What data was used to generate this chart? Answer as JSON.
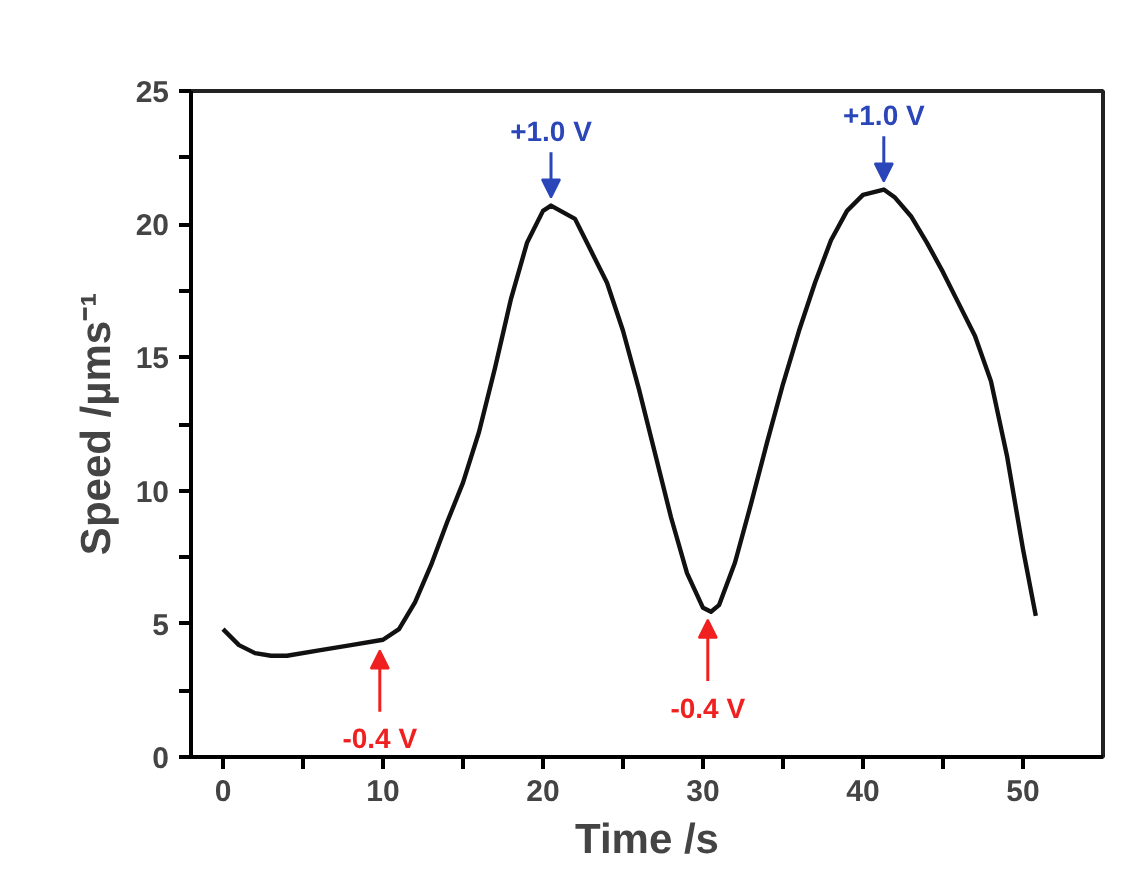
{
  "chart_data": {
    "type": "line",
    "xlabel": "Time /s",
    "ylabel": "Speed /µms⁻¹",
    "xlim": [
      -2,
      55
    ],
    "ylim": [
      0,
      25
    ],
    "xticks": [
      0,
      {
        "value": 5,
        "label": null
      },
      10,
      {
        "value": 15,
        "label": null
      },
      20,
      {
        "value": 25,
        "label": null
      },
      30,
      {
        "value": 35,
        "label": null
      },
      40,
      {
        "value": 45,
        "label": null
      },
      50
    ],
    "yticks": [
      0,
      {
        "value": 2.5,
        "label": null
      },
      5,
      {
        "value": 7.5,
        "label": null
      },
      10,
      {
        "value": 12.5,
        "label": null
      },
      15,
      {
        "value": 17.5,
        "label": null
      },
      20,
      {
        "value": 22.5,
        "label": null
      },
      25
    ],
    "grid": false,
    "marker": "none",
    "line_style": "solid",
    "series": [
      {
        "color": "#111111",
        "x": [
          0,
          1,
          2,
          3,
          4,
          6,
          8,
          10,
          11,
          12,
          13,
          14,
          15,
          16,
          17,
          18,
          19,
          20,
          20.5,
          22,
          23,
          24,
          25,
          26,
          27,
          28,
          29,
          30,
          30.5,
          31,
          32,
          33,
          34,
          35,
          36,
          37,
          38,
          39,
          40,
          41.3,
          42,
          43,
          44,
          45,
          46,
          47,
          48,
          49,
          50,
          50.8
        ],
        "values": [
          4.8,
          4.2,
          3.9,
          3.8,
          3.8,
          4.0,
          4.2,
          4.4,
          4.8,
          5.8,
          7.2,
          8.8,
          10.3,
          12.2,
          14.6,
          17.2,
          19.3,
          20.5,
          20.7,
          20.2,
          19.0,
          17.8,
          16.0,
          13.8,
          11.4,
          9.0,
          6.9,
          5.6,
          5.45,
          5.7,
          7.3,
          9.5,
          11.8,
          14.0,
          16.0,
          17.8,
          19.4,
          20.5,
          21.1,
          21.3,
          21.0,
          20.3,
          19.3,
          18.2,
          17.0,
          15.8,
          14.1,
          11.3,
          7.8,
          5.3
        ]
      }
    ],
    "annotations": [
      {
        "text": "-0.4 V",
        "x": 9.8,
        "y": 4.3
      },
      {
        "text": "+1.0 V",
        "x": 20.5,
        "y": 20.7
      },
      {
        "text": "-0.4 V",
        "x": 30.3,
        "y": 5.45
      },
      {
        "text": "+1.0 V",
        "x": 41.3,
        "y": 21.3
      }
    ]
  }
}
